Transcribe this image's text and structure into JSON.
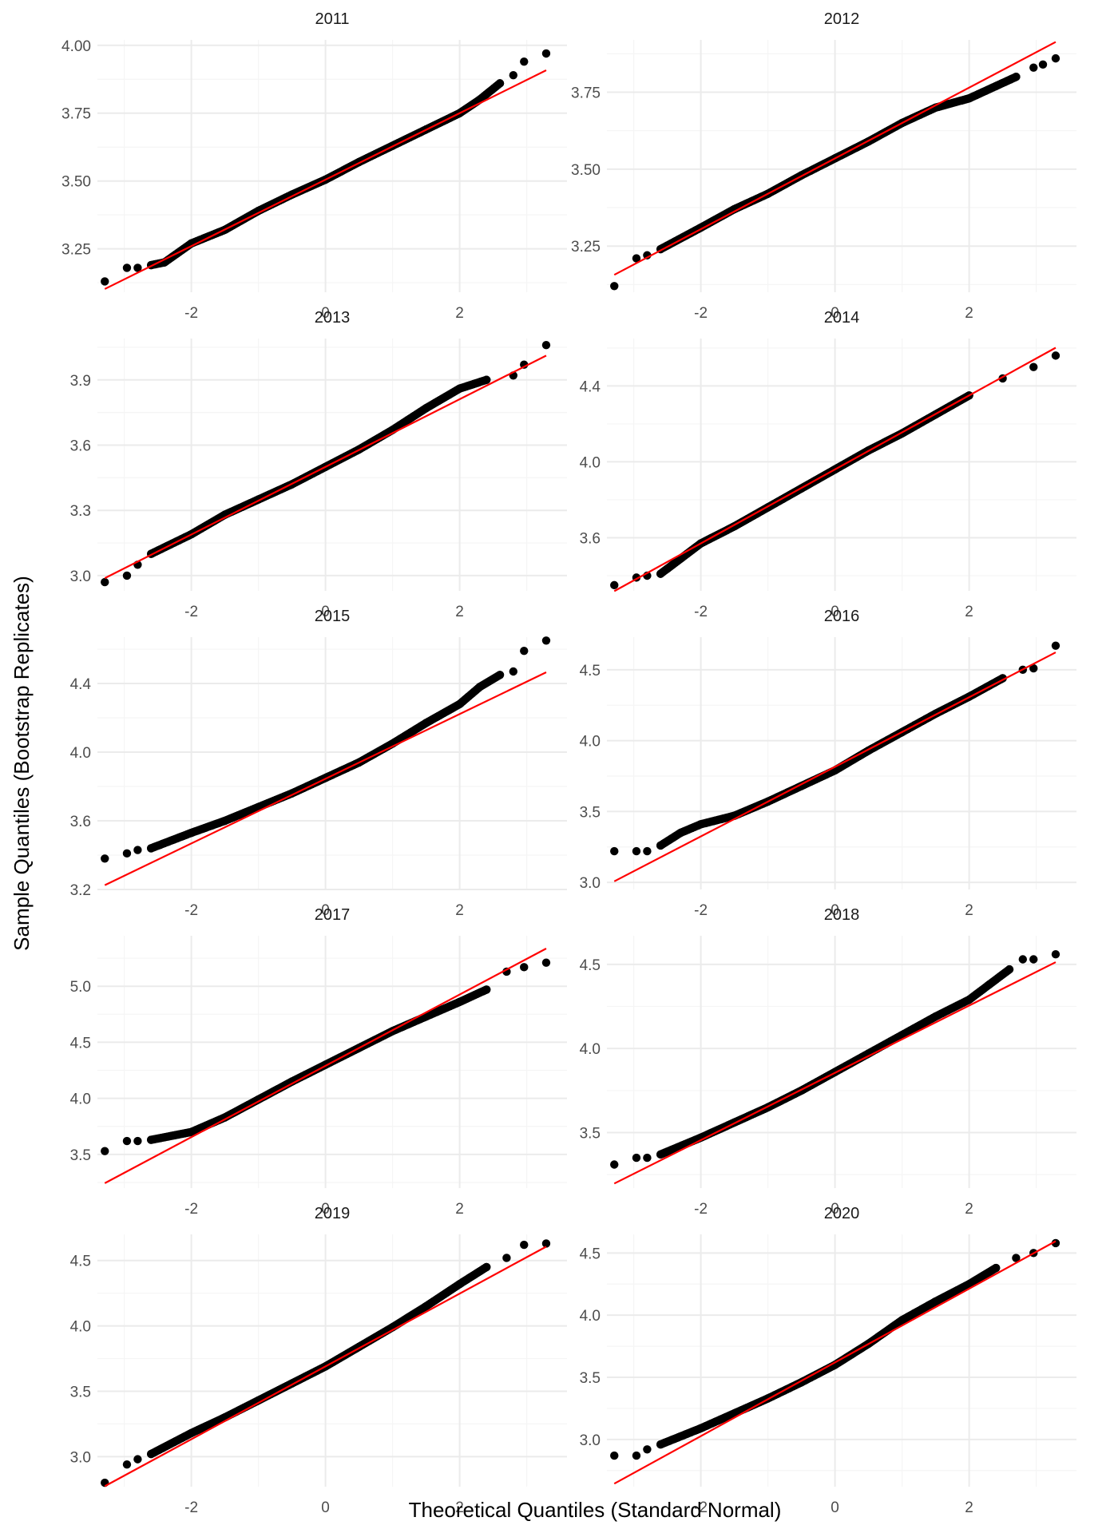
{
  "chart_data": {
    "type": "scatter",
    "xlabel": "Theoretical Quantiles (Standard Normal)",
    "ylabel": "Sample Quantiles (Bootstrap Replicates)",
    "grid": true,
    "legend": "none",
    "colors": {
      "points": "#000000",
      "reference_line": "#ff0000",
      "grid": "#ebebeb",
      "background": "#ffffff"
    },
    "panels": [
      {
        "title": "2011",
        "xlim": [
          -3.4,
          3.6
        ],
        "ylim": [
          3.09,
          4.02
        ],
        "yticks": [
          "3.25",
          "3.50",
          "3.75",
          "4.00"
        ],
        "xticks": [
          "-2",
          "0",
          "2"
        ],
        "line": {
          "intercept": 3.505,
          "slope": 0.1225
        },
        "points": [
          [
            -3.29,
            3.13
          ],
          [
            -2.96,
            3.18
          ],
          [
            -2.8,
            3.18
          ],
          [
            -2.6,
            3.19
          ],
          [
            -2.4,
            3.2
          ],
          [
            -2.0,
            3.27
          ],
          [
            -1.5,
            3.32
          ],
          [
            -1.0,
            3.39
          ],
          [
            -0.5,
            3.45
          ],
          [
            0,
            3.505
          ],
          [
            0.5,
            3.57
          ],
          [
            1.0,
            3.63
          ],
          [
            1.5,
            3.69
          ],
          [
            2.0,
            3.75
          ],
          [
            2.3,
            3.8
          ],
          [
            2.6,
            3.86
          ],
          [
            2.8,
            3.89
          ],
          [
            2.96,
            3.94
          ],
          [
            3.29,
            3.97
          ]
        ]
      },
      {
        "title": "2012",
        "xlim": [
          -3.4,
          3.6
        ],
        "ylim": [
          3.1,
          3.92
        ],
        "yticks": [
          "3.25",
          "3.50",
          "3.75"
        ],
        "xticks": [
          "-2",
          "0",
          "2"
        ],
        "line": {
          "intercept": 3.535,
          "slope": 0.115
        },
        "points": [
          [
            -3.29,
            3.12
          ],
          [
            -2.96,
            3.21
          ],
          [
            -2.8,
            3.22
          ],
          [
            -2.6,
            3.24
          ],
          [
            -2.0,
            3.31
          ],
          [
            -1.5,
            3.37
          ],
          [
            -1.0,
            3.42
          ],
          [
            -0.5,
            3.48
          ],
          [
            0,
            3.535
          ],
          [
            0.5,
            3.59
          ],
          [
            1.0,
            3.65
          ],
          [
            1.5,
            3.7
          ],
          [
            2.0,
            3.73
          ],
          [
            2.4,
            3.77
          ],
          [
            2.7,
            3.8
          ],
          [
            2.96,
            3.83
          ],
          [
            3.1,
            3.84
          ],
          [
            3.29,
            3.86
          ]
        ]
      },
      {
        "title": "2013",
        "xlim": [
          -3.4,
          3.6
        ],
        "ylim": [
          2.93,
          4.09
        ],
        "yticks": [
          "3.0",
          "3.3",
          "3.6",
          "3.9"
        ],
        "xticks": [
          "-2",
          "0",
          "2"
        ],
        "line": {
          "intercept": 3.5,
          "slope": 0.1555
        },
        "points": [
          [
            -3.29,
            2.97
          ],
          [
            -2.96,
            3.0
          ],
          [
            -2.8,
            3.05
          ],
          [
            -2.6,
            3.1
          ],
          [
            -2.0,
            3.19
          ],
          [
            -1.5,
            3.28
          ],
          [
            -1.0,
            3.35
          ],
          [
            -0.5,
            3.42
          ],
          [
            0,
            3.5
          ],
          [
            0.5,
            3.58
          ],
          [
            1.0,
            3.67
          ],
          [
            1.5,
            3.77
          ],
          [
            2.0,
            3.86
          ],
          [
            2.4,
            3.9
          ],
          [
            2.8,
            3.92
          ],
          [
            2.96,
            3.97
          ],
          [
            3.29,
            4.06
          ]
        ]
      },
      {
        "title": "2014",
        "xlim": [
          -3.4,
          3.6
        ],
        "ylim": [
          3.32,
          4.65
        ],
        "yticks": [
          "3.6",
          "4.0",
          "4.4"
        ],
        "xticks": [
          "-2",
          "0",
          "2"
        ],
        "line": {
          "intercept": 3.96,
          "slope": 0.195
        },
        "points": [
          [
            -3.29,
            3.35
          ],
          [
            -2.96,
            3.39
          ],
          [
            -2.8,
            3.4
          ],
          [
            -2.6,
            3.41
          ],
          [
            -2.3,
            3.49
          ],
          [
            -2.0,
            3.57
          ],
          [
            -1.5,
            3.66
          ],
          [
            -1.0,
            3.76
          ],
          [
            -0.5,
            3.86
          ],
          [
            0,
            3.96
          ],
          [
            0.5,
            4.06
          ],
          [
            1.0,
            4.15
          ],
          [
            1.5,
            4.25
          ],
          [
            2.0,
            4.35
          ],
          [
            2.5,
            4.44
          ],
          [
            2.96,
            4.5
          ],
          [
            3.29,
            4.56
          ]
        ]
      },
      {
        "title": "2015",
        "xlim": [
          -3.4,
          3.6
        ],
        "ylim": [
          3.2,
          4.67
        ],
        "yticks": [
          "3.2",
          "3.6",
          "4.0",
          "4.4"
        ],
        "xticks": [
          "-2",
          "0",
          "2"
        ],
        "line": {
          "intercept": 3.845,
          "slope": 0.1885
        },
        "points": [
          [
            -3.29,
            3.38
          ],
          [
            -2.96,
            3.41
          ],
          [
            -2.8,
            3.43
          ],
          [
            -2.6,
            3.44
          ],
          [
            -2.0,
            3.53
          ],
          [
            -1.5,
            3.6
          ],
          [
            -1.0,
            3.68
          ],
          [
            -0.5,
            3.76
          ],
          [
            0,
            3.85
          ],
          [
            0.5,
            3.94
          ],
          [
            1.0,
            4.05
          ],
          [
            1.5,
            4.17
          ],
          [
            2.0,
            4.28
          ],
          [
            2.3,
            4.38
          ],
          [
            2.6,
            4.45
          ],
          [
            2.8,
            4.47
          ],
          [
            2.96,
            4.59
          ],
          [
            3.29,
            4.65
          ]
        ]
      },
      {
        "title": "2016",
        "xlim": [
          -3.4,
          3.6
        ],
        "ylim": [
          2.95,
          4.73
        ],
        "yticks": [
          "3.0",
          "3.5",
          "4.0",
          "4.5"
        ],
        "xticks": [
          "-2",
          "0",
          "2"
        ],
        "line": {
          "intercept": 3.815,
          "slope": 0.2455
        },
        "points": [
          [
            -3.29,
            3.22
          ],
          [
            -2.96,
            3.22
          ],
          [
            -2.8,
            3.22
          ],
          [
            -2.6,
            3.26
          ],
          [
            -2.3,
            3.35
          ],
          [
            -2.0,
            3.41
          ],
          [
            -1.5,
            3.47
          ],
          [
            -1.0,
            3.57
          ],
          [
            -0.5,
            3.68
          ],
          [
            0,
            3.79
          ],
          [
            0.5,
            3.93
          ],
          [
            1.0,
            4.06
          ],
          [
            1.5,
            4.19
          ],
          [
            2.0,
            4.31
          ],
          [
            2.5,
            4.44
          ],
          [
            2.8,
            4.5
          ],
          [
            2.96,
            4.51
          ],
          [
            3.29,
            4.67
          ]
        ]
      },
      {
        "title": "2017",
        "xlim": [
          -3.4,
          3.6
        ],
        "ylim": [
          3.2,
          5.45
        ],
        "yticks": [
          "3.5",
          "4.0",
          "4.5",
          "5.0"
        ],
        "xticks": [
          "-2",
          "0",
          "2"
        ],
        "line": {
          "intercept": 4.29,
          "slope": 0.318
        },
        "points": [
          [
            -3.29,
            3.53
          ],
          [
            -2.96,
            3.62
          ],
          [
            -2.8,
            3.62
          ],
          [
            -2.6,
            3.63
          ],
          [
            -2.0,
            3.7
          ],
          [
            -1.5,
            3.83
          ],
          [
            -1.0,
            3.99
          ],
          [
            -0.5,
            4.15
          ],
          [
            0,
            4.3
          ],
          [
            0.5,
            4.45
          ],
          [
            1.0,
            4.6
          ],
          [
            1.5,
            4.73
          ],
          [
            2.0,
            4.86
          ],
          [
            2.4,
            4.97
          ],
          [
            2.7,
            5.13
          ],
          [
            2.96,
            5.17
          ],
          [
            3.29,
            5.21
          ]
        ]
      },
      {
        "title": "2018",
        "xlim": [
          -3.4,
          3.6
        ],
        "ylim": [
          3.17,
          4.67
        ],
        "yticks": [
          "3.5",
          "4.0",
          "4.5"
        ],
        "xticks": [
          "-2",
          "0",
          "2"
        ],
        "line": {
          "intercept": 3.855,
          "slope": 0.2,
          "comment": ""
        },
        "points": [
          [
            -3.29,
            3.31
          ],
          [
            -2.96,
            3.35
          ],
          [
            -2.8,
            3.35
          ],
          [
            -2.6,
            3.37
          ],
          [
            -2.0,
            3.47
          ],
          [
            -1.5,
            3.56
          ],
          [
            -1.0,
            3.65
          ],
          [
            -0.5,
            3.75
          ],
          [
            0,
            3.86
          ],
          [
            0.5,
            3.97
          ],
          [
            1.0,
            4.08
          ],
          [
            1.5,
            4.19
          ],
          [
            2.0,
            4.29
          ],
          [
            2.3,
            4.38
          ],
          [
            2.6,
            4.47
          ],
          [
            2.8,
            4.53
          ],
          [
            2.96,
            4.53
          ],
          [
            3.29,
            4.56
          ]
        ]
      },
      {
        "title": "2019",
        "xlim": [
          -3.4,
          3.6
        ],
        "ylim": [
          2.77,
          4.7
        ],
        "yticks": [
          "3.0",
          "3.5",
          "4.0",
          "4.5"
        ],
        "xticks": [
          "-2",
          "0",
          "2"
        ],
        "line": {
          "intercept": 3.69,
          "slope": 0.2785
        },
        "points": [
          [
            -3.29,
            2.8
          ],
          [
            -2.96,
            2.94
          ],
          [
            -2.8,
            2.98
          ],
          [
            -2.6,
            3.02
          ],
          [
            -2.0,
            3.18
          ],
          [
            -1.5,
            3.3
          ],
          [
            -1.0,
            3.43
          ],
          [
            -0.5,
            3.56
          ],
          [
            0,
            3.69
          ],
          [
            0.5,
            3.84
          ],
          [
            1.0,
            3.99
          ],
          [
            1.5,
            4.15
          ],
          [
            2.0,
            4.32
          ],
          [
            2.4,
            4.45
          ],
          [
            2.7,
            4.52
          ],
          [
            2.96,
            4.62
          ],
          [
            3.29,
            4.63
          ]
        ]
      },
      {
        "title": "2020",
        "xlim": [
          -3.4,
          3.6
        ],
        "ylim": [
          2.62,
          4.65
        ],
        "yticks": [
          "3.0",
          "3.5",
          "4.0",
          "4.5"
        ],
        "xticks": [
          "-2",
          "0",
          "2"
        ],
        "line": {
          "intercept": 3.62,
          "slope": 0.2965
        },
        "points": [
          [
            -3.29,
            2.87
          ],
          [
            -2.96,
            2.87
          ],
          [
            -2.8,
            2.92
          ],
          [
            -2.6,
            2.96
          ],
          [
            -2.0,
            3.09
          ],
          [
            -1.5,
            3.21
          ],
          [
            -1.0,
            3.33
          ],
          [
            -0.5,
            3.46
          ],
          [
            0,
            3.6
          ],
          [
            0.5,
            3.77
          ],
          [
            1.0,
            3.96
          ],
          [
            1.5,
            4.11
          ],
          [
            2.0,
            4.25
          ],
          [
            2.4,
            4.38
          ],
          [
            2.7,
            4.46
          ],
          [
            2.96,
            4.5
          ],
          [
            3.29,
            4.58
          ]
        ]
      }
    ]
  }
}
